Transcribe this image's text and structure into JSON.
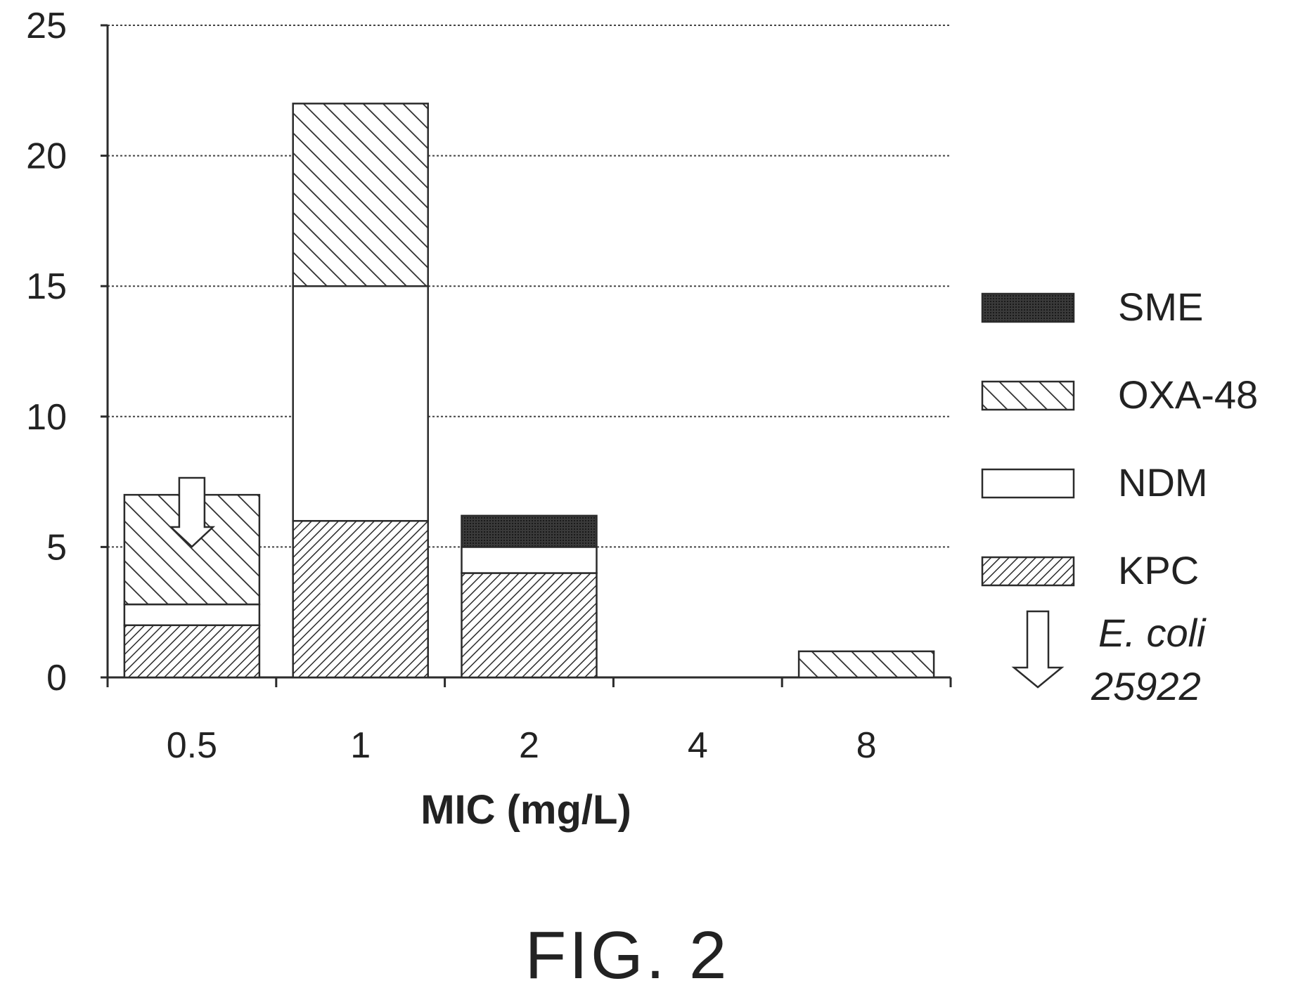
{
  "chart_data": {
    "type": "bar",
    "stacked": true,
    "title": "",
    "xlabel": "MIC (mg/L)",
    "ylabel": "",
    "ylim": [
      0,
      25
    ],
    "y_ticks": [
      0,
      5,
      10,
      15,
      20,
      25
    ],
    "categories": [
      "0.5",
      "1",
      "2",
      "4",
      "8"
    ],
    "series": [
      {
        "name": "KPC",
        "pattern": "dense-diagonal-hatch",
        "values": [
          2,
          6,
          4,
          0,
          0
        ]
      },
      {
        "name": "NDM",
        "pattern": "white",
        "values": [
          0.8,
          9,
          1,
          0,
          0
        ]
      },
      {
        "name": "OXA-48",
        "pattern": "sparse-diagonal-hatch",
        "values": [
          4.2,
          7,
          0,
          0,
          1
        ]
      },
      {
        "name": "SME",
        "pattern": "solid-dark",
        "values": [
          0,
          0,
          1.2,
          0,
          0
        ]
      }
    ],
    "legend_order": [
      "SME",
      "OXA-48",
      "NDM",
      "KPC"
    ],
    "legend_position": "right",
    "grid": "horizontal dotted",
    "annotation": {
      "marker": "down-arrow",
      "category": "0.5",
      "legend_text_line1": "E. coli",
      "legend_text_line2": "25922"
    }
  },
  "figure": {
    "caption": "FIG. 2"
  },
  "colors": {
    "ink": "#2b2b2b",
    "grid": "#444444",
    "solid_dark": "#333333"
  }
}
